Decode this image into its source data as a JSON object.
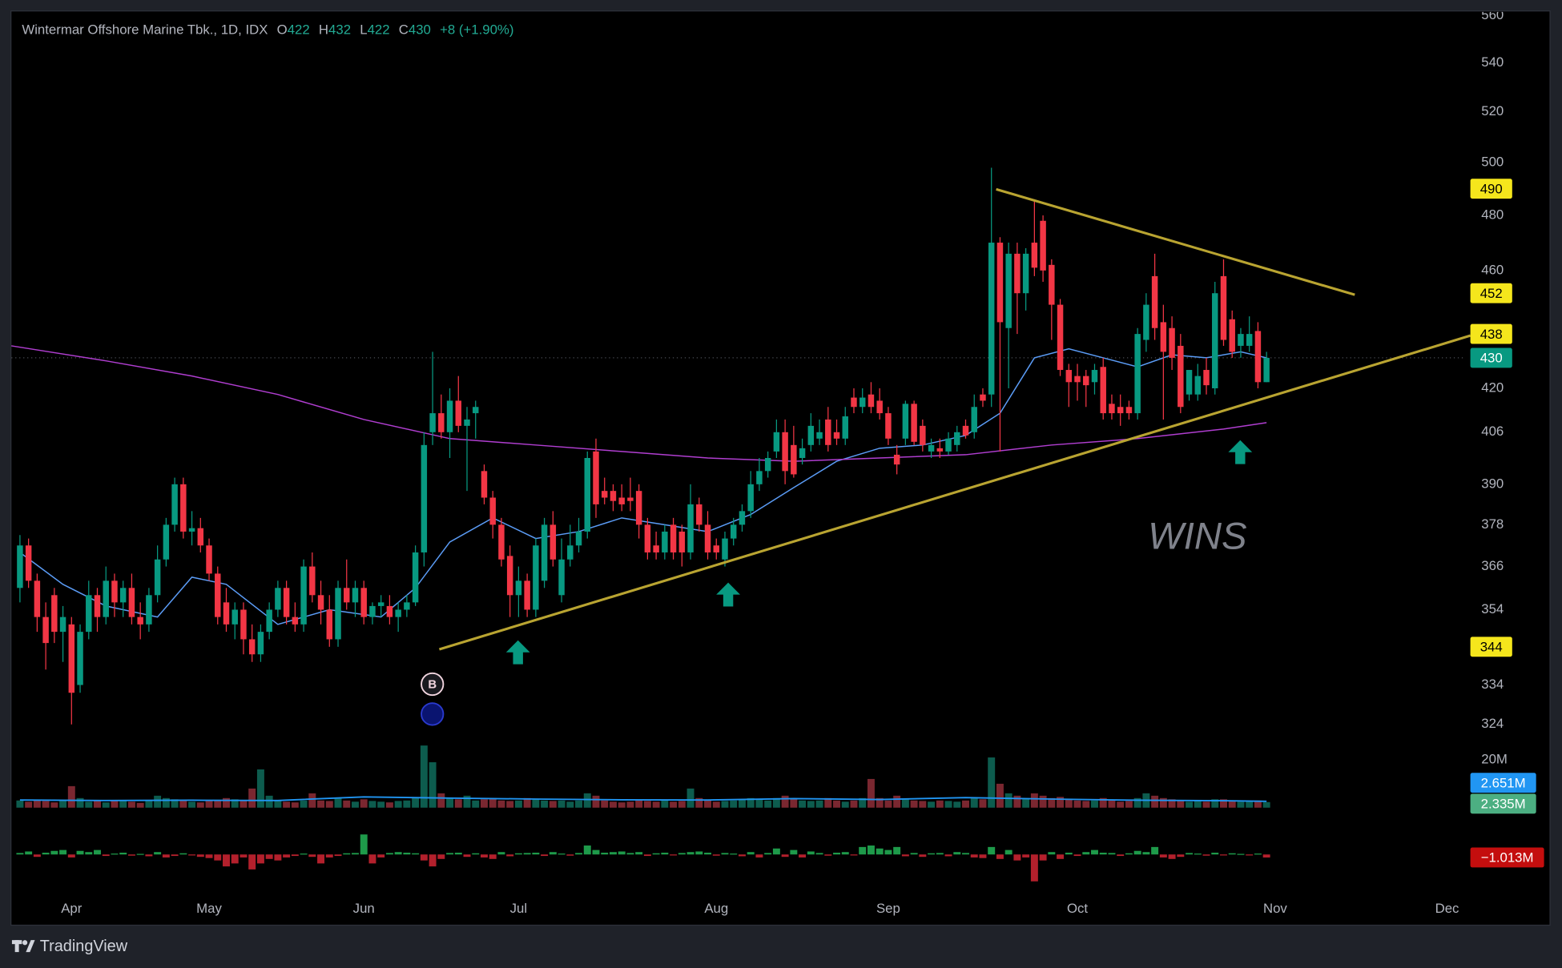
{
  "chart_data": {
    "type": "candlestick",
    "title": "Wintermar Offshore Marine Tbk., 1D, IDX",
    "ohlc_legend": [
      {
        "name": "O",
        "value": 422
      },
      {
        "name": "H",
        "value": 432
      },
      {
        "name": "L",
        "value": 422
      },
      {
        "name": "C",
        "value": 430
      }
    ],
    "change": "+8 (+1.90%)",
    "up_color": "#089981",
    "down_color": "#f23645",
    "ohlc": [
      [
        360,
        375,
        356,
        372
      ],
      [
        372,
        374,
        360,
        362
      ],
      [
        362,
        364,
        348,
        352
      ],
      [
        352,
        356,
        338,
        345
      ],
      [
        358,
        360,
        345,
        348
      ],
      [
        348,
        355,
        340,
        352
      ],
      [
        350,
        352,
        324,
        332
      ],
      [
        334,
        350,
        332,
        348
      ],
      [
        348,
        362,
        346,
        358
      ],
      [
        358,
        360,
        348,
        352
      ],
      [
        352,
        366,
        350,
        362
      ],
      [
        362,
        364,
        352,
        356
      ],
      [
        356,
        362,
        352,
        360
      ],
      [
        360,
        364,
        350,
        352
      ],
      [
        352,
        356,
        346,
        350
      ],
      [
        350,
        360,
        348,
        358
      ],
      [
        358,
        372,
        356,
        368
      ],
      [
        368,
        380,
        366,
        378
      ],
      [
        378,
        392,
        376,
        390
      ],
      [
        390,
        392,
        374,
        376
      ],
      [
        376,
        382,
        372,
        377
      ],
      [
        377,
        380,
        370,
        372
      ],
      [
        372,
        374,
        362,
        364
      ],
      [
        364,
        366,
        350,
        352
      ],
      [
        356,
        360,
        348,
        350
      ],
      [
        350,
        356,
        346,
        354
      ],
      [
        354,
        356,
        342,
        346
      ],
      [
        346,
        350,
        340,
        342
      ],
      [
        342,
        350,
        340,
        348
      ],
      [
        348,
        356,
        346,
        354
      ],
      [
        354,
        362,
        352,
        360
      ],
      [
        360,
        362,
        350,
        352
      ],
      [
        352,
        356,
        348,
        350
      ],
      [
        350,
        368,
        348,
        366
      ],
      [
        366,
        370,
        356,
        358
      ],
      [
        358,
        362,
        350,
        354
      ],
      [
        354,
        358,
        344,
        346
      ],
      [
        346,
        362,
        344,
        360
      ],
      [
        360,
        368,
        354,
        356
      ],
      [
        356,
        362,
        352,
        360
      ],
      [
        360,
        362,
        350,
        352
      ],
      [
        352,
        356,
        350,
        355
      ],
      [
        355,
        358,
        352,
        356
      ],
      [
        355,
        358,
        350,
        352
      ],
      [
        352,
        356,
        348,
        354
      ],
      [
        354,
        358,
        352,
        356
      ],
      [
        356,
        372,
        355,
        370
      ],
      [
        370,
        406,
        366,
        402
      ],
      [
        406,
        432,
        402,
        412
      ],
      [
        412,
        418,
        404,
        406
      ],
      [
        406,
        420,
        398,
        416
      ],
      [
        416,
        424,
        406,
        408
      ],
      [
        408,
        414,
        388,
        410
      ],
      [
        412,
        416,
        404,
        414
      ],
      [
        394,
        396,
        384,
        386
      ],
      [
        386,
        388,
        374,
        378
      ],
      [
        378,
        380,
        366,
        368
      ],
      [
        369,
        372,
        352,
        358
      ],
      [
        358,
        366,
        352,
        362
      ],
      [
        362,
        364,
        352,
        354
      ],
      [
        354,
        374,
        352,
        372
      ],
      [
        362,
        380,
        360,
        378
      ],
      [
        378,
        382,
        366,
        368
      ],
      [
        358,
        374,
        356,
        368
      ],
      [
        368,
        378,
        366,
        372
      ],
      [
        372,
        380,
        370,
        376
      ],
      [
        376,
        400,
        374,
        398
      ],
      [
        400,
        404,
        380,
        384
      ],
      [
        388,
        392,
        384,
        386
      ],
      [
        388,
        390,
        382,
        385
      ],
      [
        386,
        390,
        382,
        384
      ],
      [
        386,
        392,
        382,
        385
      ],
      [
        388,
        390,
        374,
        378
      ],
      [
        378,
        380,
        368,
        370
      ],
      [
        372,
        376,
        368,
        370
      ],
      [
        370,
        378,
        368,
        376
      ],
      [
        378,
        380,
        368,
        370
      ],
      [
        376,
        378,
        366,
        370
      ],
      [
        370,
        390,
        368,
        384
      ],
      [
        384,
        386,
        376,
        378
      ],
      [
        378,
        382,
        368,
        370
      ],
      [
        372,
        374,
        368,
        370
      ],
      [
        368,
        376,
        366,
        374
      ],
      [
        374,
        380,
        372,
        378
      ],
      [
        378,
        384,
        376,
        382
      ],
      [
        382,
        394,
        380,
        390
      ],
      [
        390,
        398,
        388,
        394
      ],
      [
        394,
        400,
        392,
        398
      ],
      [
        400,
        410,
        398,
        406
      ],
      [
        406,
        410,
        390,
        394
      ],
      [
        402,
        408,
        392,
        393
      ],
      [
        398,
        404,
        396,
        401
      ],
      [
        402,
        412,
        400,
        408
      ],
      [
        404,
        410,
        402,
        406
      ],
      [
        410,
        414,
        400,
        402
      ],
      [
        406,
        410,
        402,
        404
      ],
      [
        404,
        414,
        402,
        411
      ],
      [
        417,
        420,
        412,
        414
      ],
      [
        414,
        420,
        412,
        417
      ],
      [
        418,
        422,
        412,
        414
      ],
      [
        416,
        420,
        410,
        412
      ],
      [
        412,
        414,
        402,
        404
      ],
      [
        399,
        402,
        393,
        396
      ],
      [
        404,
        416,
        402,
        415
      ],
      [
        415,
        416,
        402,
        403
      ],
      [
        408,
        410,
        400,
        402
      ],
      [
        400,
        404,
        398,
        402
      ],
      [
        401,
        404,
        398,
        400
      ],
      [
        400,
        406,
        399,
        404
      ],
      [
        402,
        408,
        400,
        406
      ],
      [
        408,
        410,
        404,
        405
      ],
      [
        406,
        418,
        404,
        414
      ],
      [
        418,
        420,
        414,
        416
      ],
      [
        418,
        498,
        414,
        470
      ],
      [
        470,
        472,
        400,
        442
      ],
      [
        440,
        470,
        420,
        466
      ],
      [
        466,
        470,
        438,
        452
      ],
      [
        452,
        468,
        446,
        466
      ],
      [
        470,
        486,
        458,
        461
      ],
      [
        478,
        480,
        456,
        460
      ],
      [
        462,
        464,
        436,
        448
      ],
      [
        448,
        450,
        424,
        426
      ],
      [
        426,
        428,
        414,
        422
      ],
      [
        424,
        428,
        416,
        422
      ],
      [
        424,
        426,
        414,
        421
      ],
      [
        422,
        428,
        418,
        426
      ],
      [
        427,
        430,
        410,
        412
      ],
      [
        415,
        418,
        410,
        412
      ],
      [
        414,
        418,
        408,
        412
      ],
      [
        414,
        416,
        410,
        412
      ],
      [
        412,
        440,
        410,
        438
      ],
      [
        436,
        452,
        432,
        448
      ],
      [
        458,
        466,
        436,
        440
      ],
      [
        442,
        448,
        410,
        432
      ],
      [
        440,
        444,
        426,
        430
      ],
      [
        434,
        438,
        412,
        414
      ],
      [
        418,
        426,
        416,
        426
      ],
      [
        418,
        428,
        416,
        424
      ],
      [
        426,
        430,
        418,
        421
      ],
      [
        420,
        456,
        418,
        452
      ],
      [
        458,
        464,
        434,
        436
      ],
      [
        443,
        446,
        430,
        432
      ],
      [
        434,
        440,
        430,
        438
      ],
      [
        434,
        444,
        432,
        438
      ],
      [
        439,
        442,
        420,
        422
      ],
      [
        422,
        432,
        422,
        430
      ]
    ],
    "xlim": [
      -1,
      168
    ],
    "xticks": [
      {
        "value": 6,
        "label": "Apr"
      },
      {
        "value": 22,
        "label": "May"
      },
      {
        "value": 40,
        "label": "Jun"
      },
      {
        "value": 58,
        "label": "Jul"
      },
      {
        "value": 81,
        "label": "Aug"
      },
      {
        "value": 101,
        "label": "Sep"
      },
      {
        "value": 123,
        "label": "Oct"
      },
      {
        "value": 146,
        "label": "Nov"
      },
      {
        "value": 166,
        "label": "Dec"
      }
    ],
    "ylim": [
      320,
      562
    ],
    "log_scale": true,
    "yticks": [
      560,
      540,
      520,
      500,
      480,
      460,
      420,
      406,
      390,
      378,
      366,
      354,
      334,
      324
    ],
    "grid": false,
    "last_price": {
      "value": 430,
      "color": "#089981"
    },
    "price_markers": {
      "values": [
        490,
        452,
        438,
        344
      ],
      "color": "#f5e61c"
    },
    "moving_averages": [
      {
        "color": "#5b9cf6",
        "x": [
          0,
          5,
          10,
          16,
          20,
          24,
          30,
          36,
          42,
          46,
          50,
          55,
          60,
          65,
          70,
          75,
          80,
          85,
          90,
          95,
          100,
          105,
          110,
          114,
          118,
          122,
          126,
          130,
          134,
          138,
          142,
          145
        ],
        "values": [
          370,
          361,
          355,
          352,
          363,
          361,
          350,
          354,
          352,
          360,
          373,
          380,
          374,
          376,
          380,
          378,
          376,
          381,
          389,
          397,
          401,
          402,
          405,
          412,
          430,
          433,
          430,
          427,
          431,
          430,
          432,
          430
        ]
      },
      {
        "color": "#b03ed0",
        "x": [
          -1,
          10,
          20,
          30,
          40,
          50,
          60,
          70,
          80,
          90,
          100,
          110,
          120,
          130,
          140,
          145
        ],
        "values": [
          434,
          429,
          424,
          418,
          410,
          404,
          402,
          400,
          398,
          397,
          398,
          399,
          402,
          404,
          407,
          409
        ]
      }
    ],
    "watermark": "WINS",
    "signal_label": "B",
    "volume": {
      "values": [
        3,
        2.5,
        3,
        2.8,
        2.2,
        3,
        9,
        4,
        2.5,
        3,
        2.2,
        3,
        2.8,
        2.5,
        2,
        3,
        5,
        4,
        3.5,
        3,
        2.5,
        2.2,
        3,
        2.8,
        4,
        3.5,
        3,
        8,
        16,
        5,
        3,
        2.5,
        2.2,
        3,
        6,
        3,
        2.8,
        4,
        3,
        2.5,
        3.5,
        2.8,
        2.5,
        2.2,
        2.8,
        3,
        4,
        26,
        19,
        6,
        4,
        3.5,
        5,
        3,
        3.5,
        4,
        3,
        2.8,
        3,
        4,
        3.5,
        3,
        2.8,
        3,
        2.5,
        3,
        6,
        5,
        3,
        2.5,
        2.2,
        2.5,
        3,
        2.8,
        2.5,
        3,
        2.5,
        2.8,
        8,
        4,
        3,
        2.5,
        2.8,
        3,
        3.5,
        4,
        3.5,
        3,
        4,
        5,
        3.5,
        3,
        2.8,
        3,
        4,
        3,
        2.5,
        3,
        4,
        12,
        4,
        3,
        5,
        3.5,
        3,
        2.8,
        2.5,
        3,
        2.8,
        2.5,
        3,
        4,
        3.5,
        21,
        10,
        6,
        5,
        4,
        6,
        5,
        4,
        4.5,
        3.5,
        3,
        2.8,
        3,
        4,
        3,
        2.5,
        2.8,
        4,
        6,
        5,
        4,
        3.5,
        3,
        2.5,
        2.8,
        2.5,
        3.5,
        3.5,
        3,
        2.5,
        2.8,
        3,
        2.335
      ],
      "ylim": [
        0,
        27
      ],
      "yticks": [
        {
          "value": 20,
          "label": "20M"
        }
      ],
      "up_color": "#0d5c4e",
      "down_color": "#7a2730",
      "ma": {
        "color": "#2196f3",
        "x": [
          0,
          10,
          20,
          30,
          40,
          50,
          60,
          70,
          80,
          90,
          100,
          110,
          120,
          130,
          140,
          145
        ],
        "values": [
          3.2,
          3.0,
          3.1,
          3.0,
          4.5,
          4.0,
          3.6,
          3.3,
          3.2,
          3.8,
          3.4,
          4.2,
          3.6,
          3.1,
          2.9,
          2.651
        ]
      },
      "ma_last": {
        "value": 2.651,
        "label": "2.651M"
      },
      "last": {
        "value": 2.335,
        "label": "2.335M",
        "color": "#4caf82"
      }
    },
    "flow": {
      "values": [
        0.5,
        1,
        -0.8,
        0.6,
        1.2,
        1.5,
        -1,
        1.2,
        0.8,
        1.5,
        -0.5,
        0.3,
        0.6,
        -0.4,
        0.2,
        -0.6,
        0.8,
        -1,
        -0.5,
        0.4,
        -0.3,
        -0.8,
        -1.2,
        -2,
        -4,
        -3,
        -1,
        -5,
        -3,
        -1.5,
        -2,
        -1,
        -0.5,
        0.3,
        -0.8,
        -3,
        -1,
        -0.5,
        0.4,
        0.5,
        6.7,
        -3,
        -1,
        0.5,
        0.8,
        0.6,
        0.4,
        -2,
        -4,
        -1.5,
        0.5,
        0.6,
        -0.8,
        0.4,
        -1,
        -1.5,
        0.8,
        -0.6,
        0.4,
        0.5,
        0.6,
        -0.5,
        0.8,
        0.3,
        -0.4,
        0.5,
        3,
        1.5,
        0.6,
        0.8,
        1,
        0.5,
        0.8,
        -0.5,
        0.4,
        0.6,
        -0.3,
        0.5,
        0.8,
        1,
        0.6,
        -0.4,
        0.5,
        0.3,
        -0.6,
        0.8,
        -1,
        0.5,
        2,
        -0.8,
        1.5,
        -1,
        1,
        0.5,
        -0.4,
        0.6,
        0.8,
        -0.3,
        2.5,
        3,
        2,
        1.5,
        2.5,
        -0.6,
        0.5,
        -0.8,
        0.4,
        0.5,
        -0.6,
        0.8,
        0.5,
        -1,
        -1.2,
        2.5,
        -1.5,
        1.5,
        -2,
        -1,
        -9,
        -2,
        0.8,
        -1.5,
        0.6,
        -0.5,
        0.8,
        1.5,
        0.6,
        0.5,
        -0.5,
        0.4,
        1.2,
        0.8,
        2.5,
        -1,
        -1.5,
        -0.8,
        0.5,
        0.3,
        -0.4,
        0.6,
        -0.3,
        0.4,
        0.2,
        -0.3,
        0.3,
        -1.013
      ],
      "ylim": [
        -10,
        10
      ],
      "up_color": "#1e9a4a",
      "down_color": "#b3202c",
      "last": {
        "value": -1.013,
        "label": "−1.013M",
        "color": "#c40e0e"
      }
    }
  },
  "footer": {
    "brand": "TradingView"
  }
}
